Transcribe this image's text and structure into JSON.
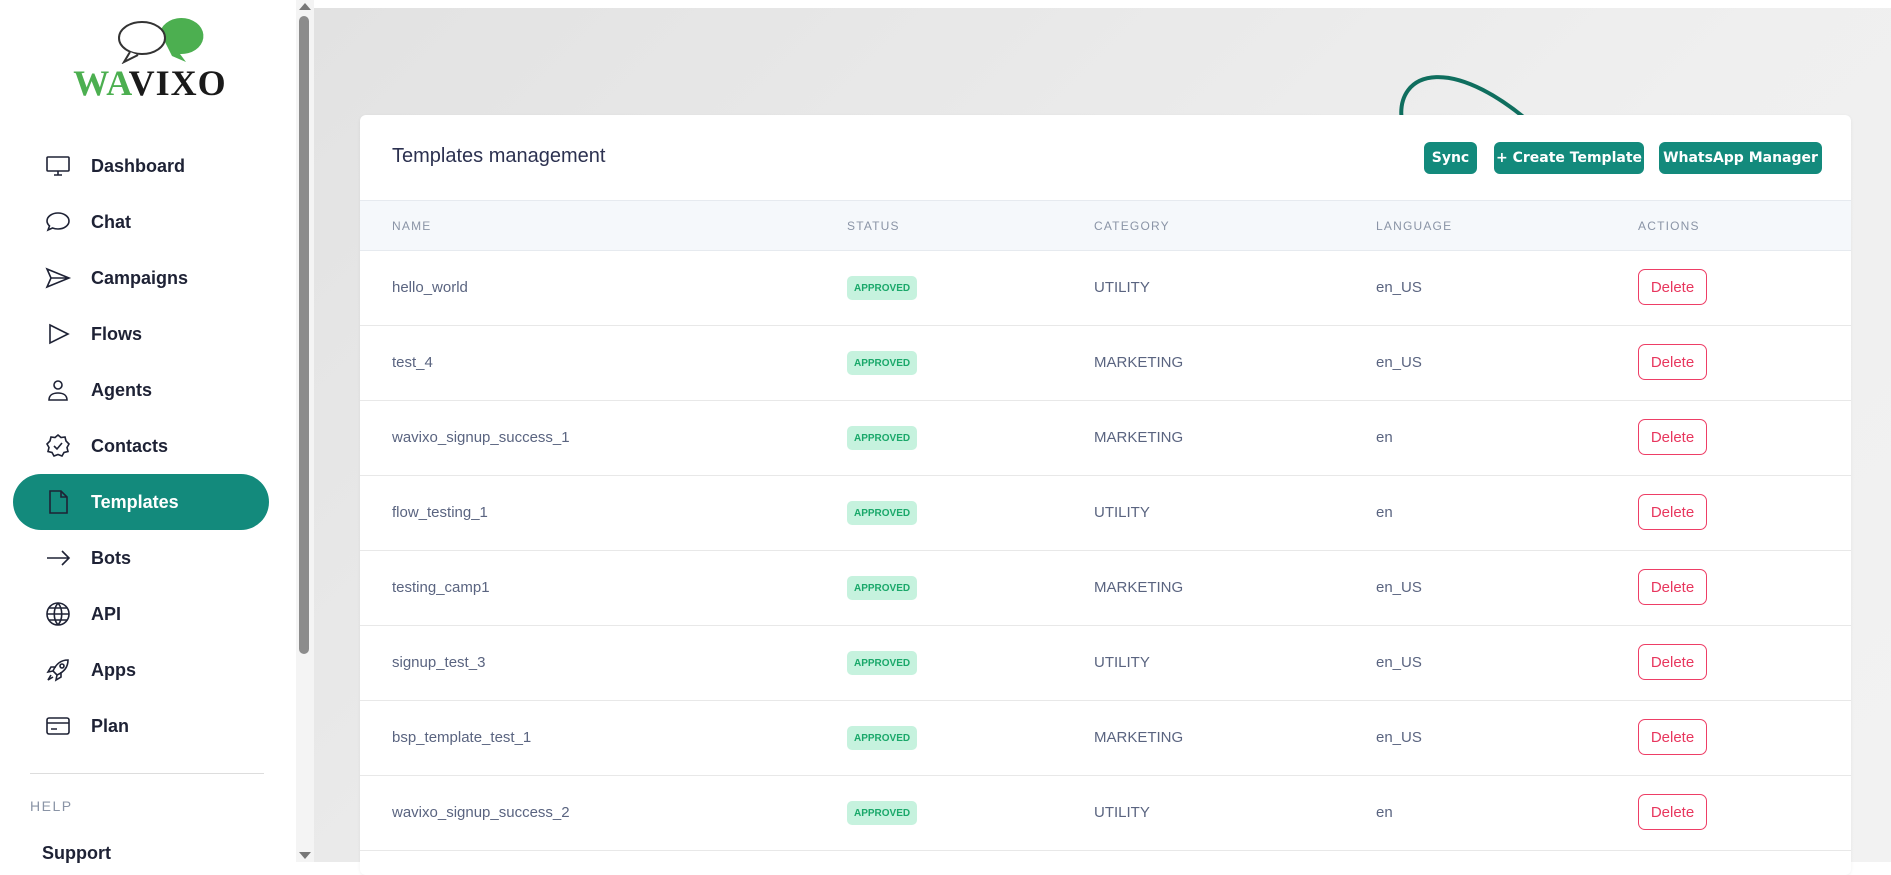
{
  "brand": {
    "logo_text_1": "WA",
    "logo_text_2": "VIXO",
    "accent": "#138a7c"
  },
  "sidebar": {
    "items": [
      {
        "label": "Dashboard",
        "icon": "monitor-icon"
      },
      {
        "label": "Chat",
        "icon": "chat-bubble-icon"
      },
      {
        "label": "Campaigns",
        "icon": "send-icon"
      },
      {
        "label": "Flows",
        "icon": "play-icon"
      },
      {
        "label": "Agents",
        "icon": "user-icon"
      },
      {
        "label": "Contacts",
        "icon": "badge-check-icon"
      },
      {
        "label": "Templates",
        "icon": "document-icon",
        "active": true
      },
      {
        "label": "Bots",
        "icon": "arrow-right-icon"
      },
      {
        "label": "API",
        "icon": "globe-icon"
      },
      {
        "label": "Apps",
        "icon": "rocket-icon"
      },
      {
        "label": "Plan",
        "icon": "credit-card-icon"
      }
    ],
    "help_heading": "HELP",
    "support_label": "Support"
  },
  "main": {
    "title": "Templates management",
    "buttons": {
      "sync": "Sync",
      "create": "+ Create Template",
      "manager": "WhatsApp Manager"
    },
    "columns": [
      "NAME",
      "STATUS",
      "CATEGORY",
      "LANGUAGE",
      "ACTIONS"
    ],
    "rows": [
      {
        "name": "hello_world",
        "status": "APPROVED",
        "category": "UTILITY",
        "language": "en_US",
        "action": "Delete"
      },
      {
        "name": "test_4",
        "status": "APPROVED",
        "category": "MARKETING",
        "language": "en_US",
        "action": "Delete"
      },
      {
        "name": "wavixo_signup_success_1",
        "status": "APPROVED",
        "category": "MARKETING",
        "language": "en",
        "action": "Delete"
      },
      {
        "name": "flow_testing_1",
        "status": "APPROVED",
        "category": "UTILITY",
        "language": "en",
        "action": "Delete"
      },
      {
        "name": "testing_camp1",
        "status": "APPROVED",
        "category": "MARKETING",
        "language": "en_US",
        "action": "Delete"
      },
      {
        "name": "signup_test_3",
        "status": "APPROVED",
        "category": "UTILITY",
        "language": "en_US",
        "action": "Delete"
      },
      {
        "name": "bsp_template_test_1",
        "status": "APPROVED",
        "category": "MARKETING",
        "language": "en_US",
        "action": "Delete"
      },
      {
        "name": "wavixo_signup_success_2",
        "status": "APPROVED",
        "category": "UTILITY",
        "language": "en",
        "action": "Delete"
      }
    ]
  }
}
